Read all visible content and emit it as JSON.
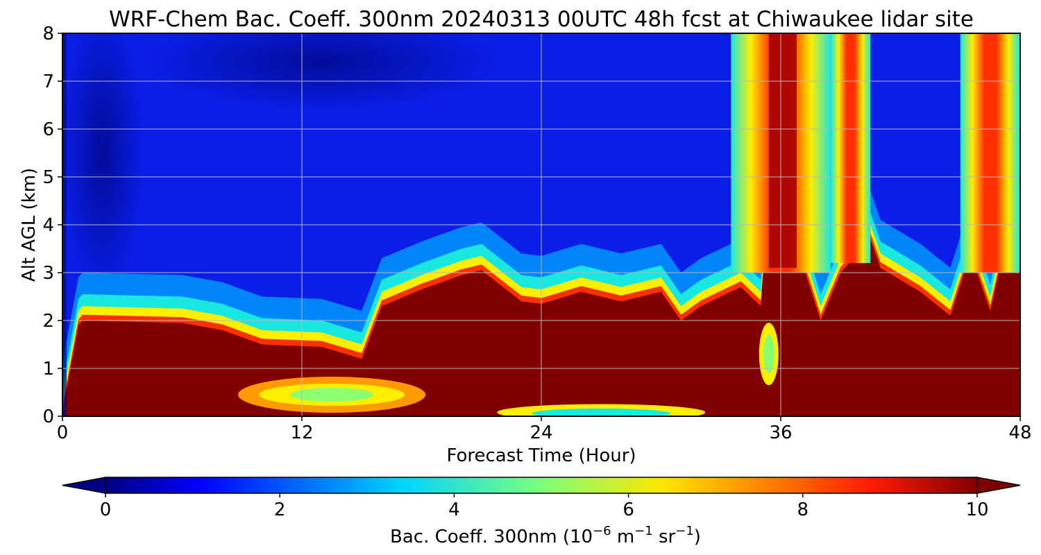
{
  "chart_data": {
    "type": "heatmap",
    "title": "WRF-Chem Bac. Coeff. 300nm  20240313 00UTC 48h fcst at Chiwaukee lidar site",
    "xlabel": "Forecast Time (Hour)",
    "ylabel": "Alt AGL (km)",
    "xlim": [
      0,
      48
    ],
    "ylim": [
      0,
      8
    ],
    "x_ticks": [
      "0",
      "12",
      "24",
      "36",
      "48"
    ],
    "y_ticks": [
      "0",
      "1",
      "2",
      "3",
      "4",
      "5",
      "6",
      "7",
      "8"
    ],
    "grid": true,
    "colormap": "jet",
    "colorbar": {
      "label_main": "Bac. Coeff. 300nm  (10",
      "label_exp1": "−6",
      "label_mid": " m",
      "label_exp2": "−1",
      "label_mid2": " sr",
      "label_exp3": "−1",
      "label_end": ")",
      "range": [
        0,
        10
      ],
      "extend": "both",
      "ticks": [
        "0",
        "2",
        "4",
        "6",
        "8",
        "10"
      ]
    },
    "layers": {
      "surface_layer_top_km": [
        [
          0,
          0.1
        ],
        [
          0.8,
          1.9
        ],
        [
          1,
          2.0
        ],
        [
          6,
          1.95
        ],
        [
          8,
          1.8
        ],
        [
          10,
          1.5
        ],
        [
          13,
          1.45
        ],
        [
          15,
          1.2
        ],
        [
          16,
          2.3
        ],
        [
          18,
          2.65
        ],
        [
          20,
          2.95
        ],
        [
          21,
          3.05
        ],
        [
          23,
          2.4
        ],
        [
          24,
          2.35
        ],
        [
          26,
          2.6
        ],
        [
          28,
          2.4
        ],
        [
          30,
          2.6
        ],
        [
          31,
          2.0
        ],
        [
          32,
          2.3
        ],
        [
          34,
          2.7
        ],
        [
          35,
          2.3
        ],
        [
          35.3,
          4.0
        ],
        [
          36,
          3.2
        ],
        [
          37,
          3.3
        ],
        [
          38,
          2.0
        ],
        [
          39,
          3.0
        ],
        [
          40.5,
          3.7
        ],
        [
          41,
          3.1
        ],
        [
          43,
          2.6
        ],
        [
          44.5,
          2.1
        ],
        [
          45.5,
          3.4
        ],
        [
          46.5,
          2.2
        ],
        [
          48,
          5.0
        ]
      ],
      "plume_core_hours": [
        35,
        37
      ]
    }
  }
}
